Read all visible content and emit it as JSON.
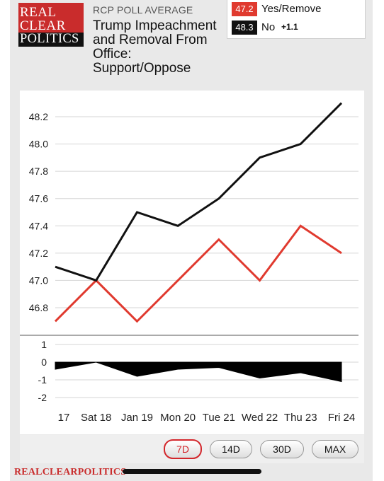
{
  "header": {
    "logo": {
      "line1": "REAL",
      "line2": "CLEAR",
      "line3": "POLITICS"
    },
    "kicker": "RCP POLL AVERAGE",
    "title": "Trump Impeachment and Removal From Office: Support/Oppose"
  },
  "legend": {
    "items": [
      {
        "value": "47.2",
        "label": "Yes/Remove",
        "color": "#e03a2f",
        "change": ""
      },
      {
        "value": "48.3",
        "label": "No",
        "color": "#111111",
        "change": "+1.1"
      }
    ]
  },
  "range_buttons": [
    {
      "label": "7D",
      "active": true
    },
    {
      "label": "14D",
      "active": false
    },
    {
      "label": "30D",
      "active": false
    },
    {
      "label": "MAX",
      "active": false
    }
  ],
  "footer": {
    "brand": "REALCLEARPOLITICS"
  },
  "chart_data": [
    {
      "type": "line",
      "x": [
        "17",
        "Sat 18",
        "Jan 19",
        "Mon 20",
        "Tue 21",
        "Wed 22",
        "Thu 23",
        "Fri 24"
      ],
      "series": [
        {
          "name": "Yes/Remove",
          "color": "#e03a2f",
          "values": [
            46.7,
            47.0,
            46.7,
            47.0,
            47.3,
            47.0,
            47.4,
            47.2
          ]
        },
        {
          "name": "No",
          "color": "#111111",
          "values": [
            47.1,
            47.0,
            47.5,
            47.4,
            47.6,
            47.9,
            48.0,
            48.3
          ]
        }
      ],
      "yticks": [
        "46.8",
        "47.0",
        "47.2",
        "47.4",
        "47.6",
        "47.8",
        "48.0",
        "48.2"
      ],
      "ylim": [
        46.7,
        48.35
      ],
      "grid": true
    },
    {
      "type": "area",
      "x": [
        "17",
        "Sat 18",
        "Jan 19",
        "Mon 20",
        "Tue 21",
        "Wed 22",
        "Thu 23",
        "Fri 24"
      ],
      "series": [
        {
          "color": "#000000",
          "values": [
            -0.4,
            0.0,
            -0.8,
            -0.4,
            -0.3,
            -0.9,
            -0.6,
            -1.1
          ]
        }
      ],
      "yticks": [
        "1",
        "0",
        "-1",
        "-2"
      ],
      "ylim": [
        -2,
        1
      ],
      "grid": true
    }
  ]
}
